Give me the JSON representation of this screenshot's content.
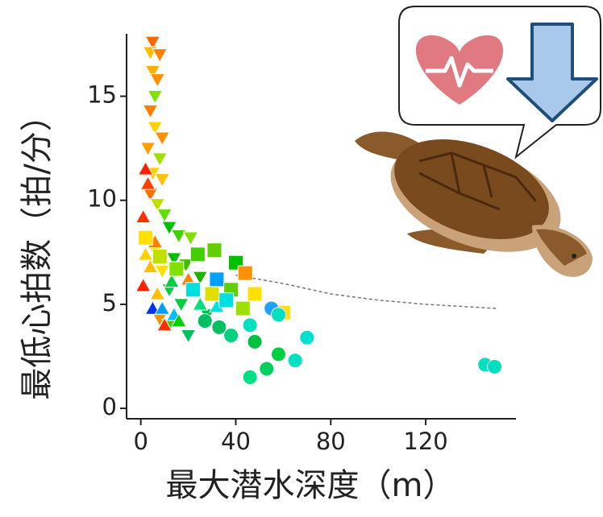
{
  "chart_data": {
    "type": "scatter",
    "x_label": "最大潜水深度（m）",
    "y_label": "最低心拍数（拍/分）",
    "xlim": [
      -6,
      158
    ],
    "ylim": [
      -0.5,
      18
    ],
    "xticks": [
      0,
      40,
      80,
      120
    ],
    "yticks": [
      0,
      5,
      10,
      15
    ],
    "series": [
      {
        "marker": "triangle-down",
        "x": [
          5,
          4,
          8,
          5,
          7,
          6,
          4,
          6,
          9,
          3,
          8,
          5,
          9,
          4,
          7,
          10,
          12,
          16,
          21,
          6,
          14,
          19,
          25,
          9,
          12,
          17,
          8,
          20,
          12,
          28
        ],
        "y": [
          17.6,
          17.1,
          17.0,
          16.2,
          15.8,
          15.0,
          14.3,
          13.5,
          13.0,
          12.5,
          12.0,
          11.3,
          11.0,
          10.3,
          9.8,
          9.3,
          8.7,
          8.3,
          8.2,
          7.6,
          7.2,
          6.9,
          6.3,
          6.6,
          5.7,
          5.0,
          4.3,
          3.5,
          4.0,
          4.5
        ],
        "colors": [
          "#ff6a00",
          "#ffc000",
          "#ff8000",
          "#ffb000",
          "#ff9000",
          "#80e000",
          "#ff8000",
          "#ffd000",
          "#ff9000",
          "#ffa000",
          "#a0e000",
          "#ffd000",
          "#ffc000",
          "#ff7000",
          "#c0e000",
          "#60e000",
          "#00c000",
          "#40d000",
          "#80e000",
          "#e0e000",
          "#00c000",
          "#40c000",
          "#20b000",
          "#ffe000",
          "#00d040",
          "#00d040",
          "#ff9000",
          "#00c060",
          "#40d000",
          "#00c040"
        ]
      },
      {
        "marker": "triangle-up",
        "x": [
          2,
          3,
          1,
          3,
          6,
          2,
          4,
          1,
          7,
          5,
          9,
          14,
          20,
          13,
          25,
          32,
          10,
          16
        ],
        "y": [
          11.5,
          10.8,
          9.2,
          8.3,
          8.0,
          7.4,
          6.8,
          5.9,
          5.5,
          4.8,
          4.8,
          4.5,
          6.2,
          6.1,
          5.0,
          4.9,
          4.0,
          4.2
        ],
        "colors": [
          "#ff2000",
          "#ff4000",
          "#ff3000",
          "#ffe000",
          "#ff8000",
          "#ffd000",
          "#ffc000",
          "#ff2000",
          "#ffc000",
          "#0030ff",
          "#00a0ff",
          "#00c0ff",
          "#ff8000",
          "#00d040",
          "#00e080",
          "#00e0e0",
          "#ff3000",
          "#00d000"
        ]
      },
      {
        "marker": "square",
        "x": [
          2,
          8,
          24,
          31,
          40,
          44,
          32,
          22,
          30,
          38,
          48,
          43,
          60,
          36,
          15
        ],
        "y": [
          8.2,
          7.3,
          7.4,
          7.6,
          7.0,
          6.5,
          6.2,
          5.7,
          5.5,
          5.7,
          5.5,
          4.8,
          4.6,
          5.2,
          6.7
        ],
        "colors": [
          "#ffe000",
          "#c0e000",
          "#40d000",
          "#60d000",
          "#00c000",
          "#ff9000",
          "#00a0ff",
          "#00e0e0",
          "#e0e000",
          "#60d000",
          "#ffe000",
          "#a0e000",
          "#ffe000",
          "#00e0e0",
          "#80e000"
        ]
      },
      {
        "marker": "circle",
        "x": [
          33,
          38,
          46,
          48,
          55,
          58,
          58,
          53,
          46,
          65,
          70,
          145,
          149,
          27
        ],
        "y": [
          3.9,
          3.5,
          4.0,
          3.2,
          4.8,
          4.5,
          2.6,
          1.9,
          1.5,
          2.3,
          3.4,
          2.1,
          2.0,
          4.2
        ],
        "colors": [
          "#00c060",
          "#00d080",
          "#00e0c0",
          "#00c040",
          "#20a0ff",
          "#00e0c0",
          "#00d040",
          "#00d060",
          "#00e080",
          "#00e0c0",
          "#00e0d0",
          "#00e0c0",
          "#00e0c0",
          "#00c060"
        ]
      }
    ],
    "trend": {
      "type": "line",
      "style": "dashed",
      "color": "#777777",
      "x": [
        40,
        60,
        80,
        100,
        120,
        150
      ],
      "y": [
        6.4,
        6.0,
        5.5,
        5.2,
        5.0,
        4.8
      ]
    }
  }
}
